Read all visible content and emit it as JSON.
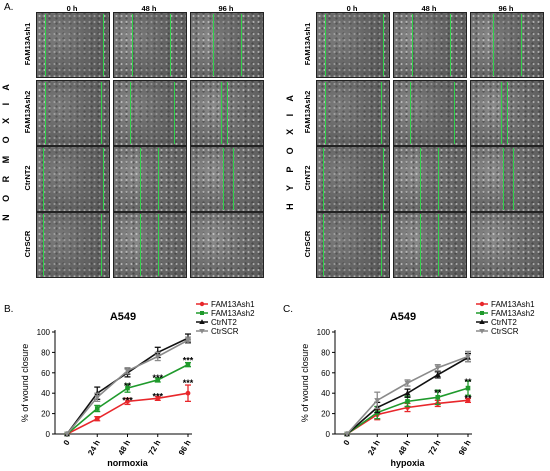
{
  "panel_a_label": "A.",
  "panel_b_label": "B.",
  "panel_c_label": "C.",
  "microscopy": {
    "time_headers": [
      "0 h",
      "48 h",
      "96 h"
    ],
    "rows": [
      "FAM13Ash1",
      "FAM13Ash2",
      "CtrNT2",
      "CtrSCR"
    ],
    "normoxia_label": "N O R M O X I A",
    "hypoxia_label": "H Y P O X I A"
  },
  "colors": {
    "FAM13Ash1": "#e8272b",
    "FAM13Ash2": "#1f9a2c",
    "CtrNT2": "#111111",
    "CtrSCR": "#8a8a8a",
    "wound_line": "#2fd24a"
  },
  "chart_data": [
    {
      "type": "line",
      "title": "A549",
      "xlabel": "normoxia",
      "ylabel": "% of wound closure",
      "categories": [
        "0",
        "24 h",
        "48 h",
        "72 h",
        "96 h"
      ],
      "ylim": [
        0,
        100
      ],
      "yticks": [
        0,
        20,
        40,
        60,
        80,
        100
      ],
      "legend_position": "top-right",
      "series": [
        {
          "name": "FAM13Ash1",
          "marker": "circle",
          "values": [
            0,
            15,
            32,
            35,
            40
          ],
          "errors": [
            0,
            2,
            3,
            2,
            8
          ]
        },
        {
          "name": "FAM13Ash2",
          "marker": "square",
          "values": [
            0,
            25,
            45,
            53,
            68
          ],
          "errors": [
            0,
            3,
            4,
            2,
            2
          ]
        },
        {
          "name": "CtrNT2",
          "marker": "triangle-up",
          "values": [
            0,
            40,
            60,
            80,
            94
          ],
          "errors": [
            0,
            6,
            4,
            5,
            4
          ]
        },
        {
          "name": "CtrSCR",
          "marker": "triangle-down",
          "values": [
            0,
            36,
            62,
            76,
            92
          ],
          "errors": [
            0,
            4,
            3,
            4,
            3
          ]
        }
      ],
      "annotations": [
        {
          "x": "48 h",
          "y": 33,
          "text": "***"
        },
        {
          "x": "48 h",
          "y": 47,
          "text": "**"
        },
        {
          "x": "72 h",
          "y": 37,
          "text": "***"
        },
        {
          "x": "72 h",
          "y": 55,
          "text": "***"
        },
        {
          "x": "96 h",
          "y": 50,
          "text": "***"
        },
        {
          "x": "96 h",
          "y": 72,
          "text": "***"
        }
      ]
    },
    {
      "type": "line",
      "title": "A549",
      "xlabel": "hypoxia",
      "ylabel": "% of wound closure",
      "categories": [
        "0",
        "24 h",
        "48 h",
        "72 h",
        "96 h"
      ],
      "ylim": [
        0,
        100
      ],
      "yticks": [
        0,
        20,
        40,
        60,
        80,
        100
      ],
      "legend_position": "top-right",
      "series": [
        {
          "name": "FAM13Ash1",
          "marker": "circle",
          "values": [
            0,
            19,
            26,
            30,
            33
          ],
          "errors": [
            0,
            5,
            4,
            3,
            2
          ]
        },
        {
          "name": "FAM13Ash2",
          "marker": "square",
          "values": [
            0,
            21,
            32,
            36,
            45
          ],
          "errors": [
            0,
            6,
            5,
            7,
            7
          ]
        },
        {
          "name": "CtrNT2",
          "marker": "triangle-up",
          "values": [
            0,
            26,
            40,
            58,
            75
          ],
          "errors": [
            0,
            5,
            4,
            3,
            4
          ]
        },
        {
          "name": "CtrSCR",
          "marker": "triangle-down",
          "values": [
            0,
            33,
            50,
            65,
            76
          ],
          "errors": [
            0,
            8,
            3,
            3,
            5
          ]
        }
      ],
      "annotations": [
        {
          "x": "72 h",
          "y": 40,
          "text": "**"
        },
        {
          "x": "96 h",
          "y": 51,
          "text": "**"
        },
        {
          "x": "96 h",
          "y": 35,
          "text": "**"
        }
      ]
    }
  ]
}
